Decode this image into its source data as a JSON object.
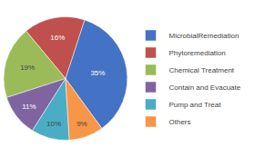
{
  "chart_data": {
    "type": "pie",
    "categories": [
      "MicrobialRemediation",
      "Phytoremediation",
      "Chemical Treatment",
      "Contain and Evacuate",
      "Pump and Treat",
      "Others"
    ],
    "values": [
      35,
      16,
      19,
      11,
      10,
      9
    ],
    "value_labels": [
      "35%",
      "16%",
      "19%",
      "11%",
      "10%",
      "9%"
    ],
    "colors": [
      "#4472C4",
      "#C0504D",
      "#9BBB59",
      "#8064A2",
      "#4BACC6",
      "#F79646"
    ],
    "data_labels": true,
    "legend": "right"
  }
}
